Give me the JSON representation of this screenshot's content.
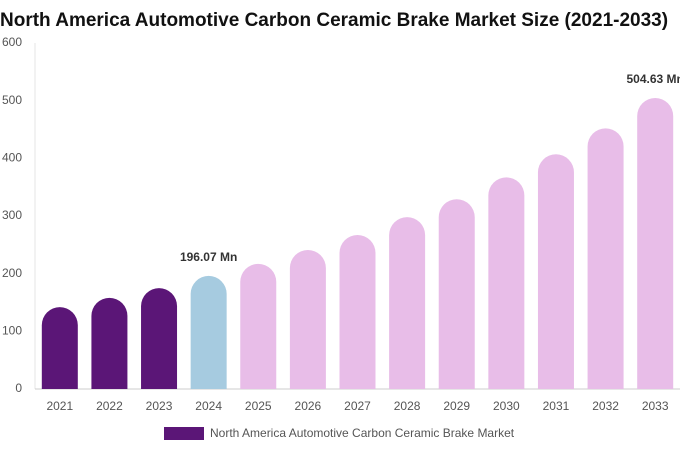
{
  "chart_data": {
    "type": "bar",
    "title": "North America Automotive Carbon Ceramic Brake Market Size (2021-2033)",
    "categories": [
      "2021",
      "2022",
      "2023",
      "2024",
      "2025",
      "2026",
      "2027",
      "2028",
      "2029",
      "2030",
      "2031",
      "2032",
      "2033"
    ],
    "series": [
      {
        "name": "North America Automotive Carbon Ceramic Brake Market",
        "color": "#5b1677",
        "values": [
          142,
          158,
          175,
          196.07,
          217,
          241,
          267,
          298,
          329,
          367,
          407,
          452,
          504.63
        ],
        "value_labels": [
          null,
          null,
          null,
          "196.07 Mn",
          null,
          null,
          null,
          null,
          null,
          null,
          null,
          null,
          "504.63 Mn"
        ],
        "bar_colors": [
          "#5b1677",
          "#5b1677",
          "#5b1677",
          "#a6cbe0",
          "#e8bde8",
          "#e8bde8",
          "#e8bde8",
          "#e8bde8",
          "#e8bde8",
          "#e8bde8",
          "#e8bde8",
          "#e8bde8",
          "#e8bde8"
        ]
      }
    ],
    "ylim": [
      0,
      600
    ],
    "yticks": [
      0,
      100,
      200,
      300,
      400,
      500,
      600
    ],
    "grid": false,
    "legend": "bottom"
  }
}
